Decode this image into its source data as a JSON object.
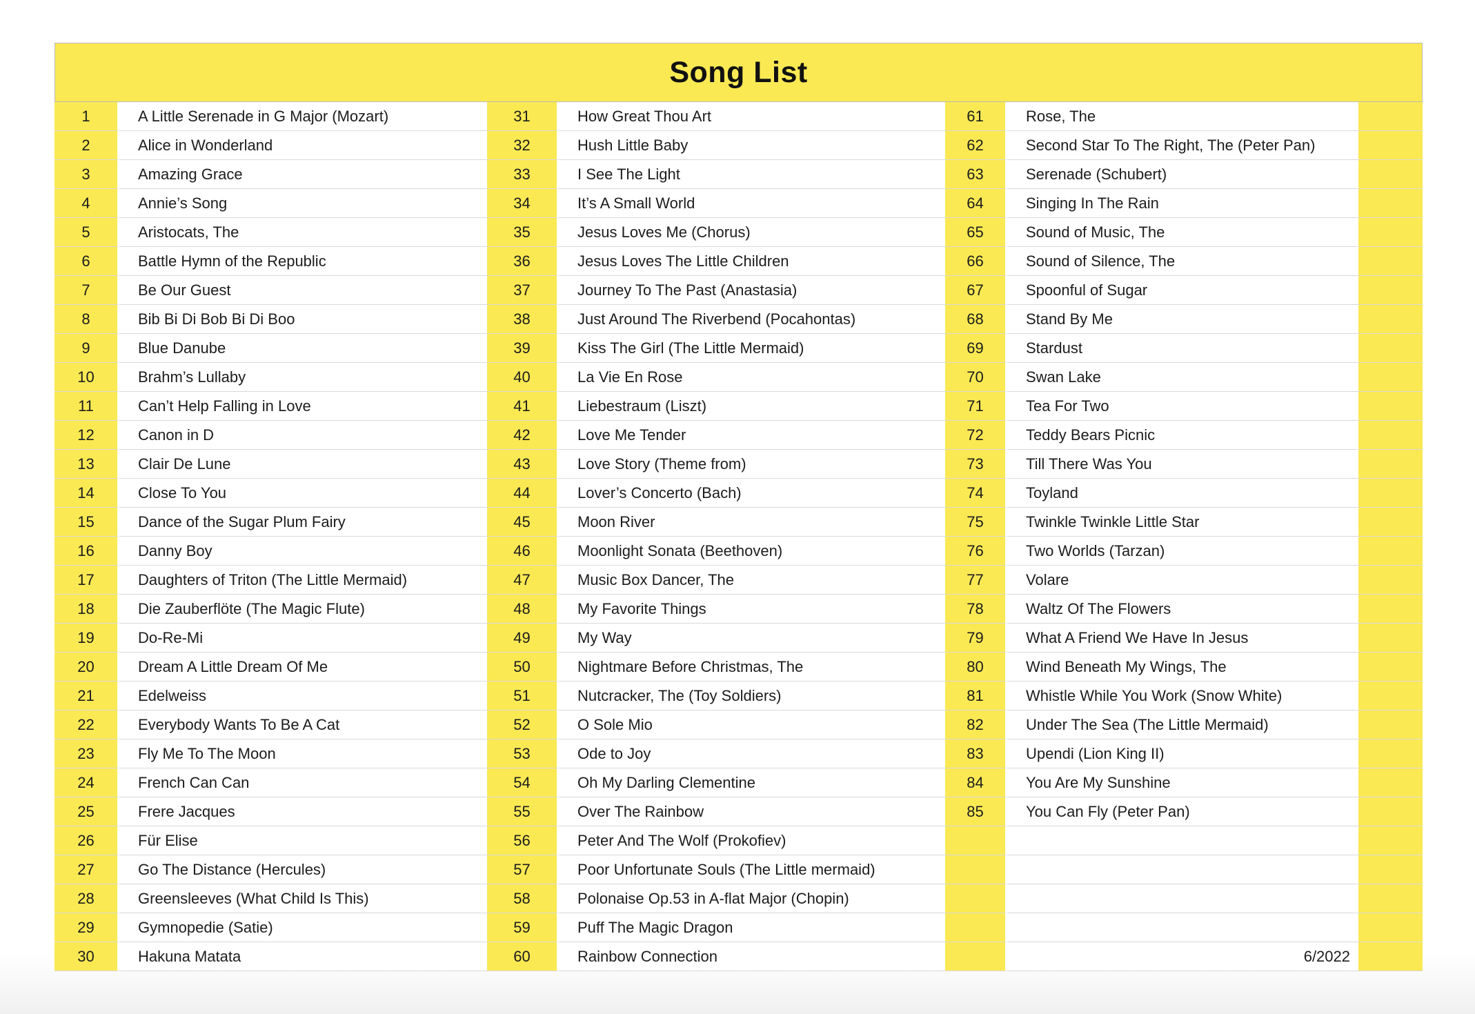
{
  "page": {
    "title": "Song List",
    "footer_date": "6/2022"
  },
  "colors": {
    "yellow": "#FAE953",
    "row": "#FFFFFF",
    "alt_row": "#F2F2F2",
    "divider": "#D9D9D9",
    "text": "#1C1C1C"
  },
  "table": {
    "rows_per_column": 30,
    "columns": [
      {
        "entries": [
          {
            "num": "1",
            "title": "A Little Serenade in G Major (Mozart)"
          },
          {
            "num": "2",
            "title": "Alice in Wonderland"
          },
          {
            "num": "3",
            "title": "Amazing Grace"
          },
          {
            "num": "4",
            "title": "Annie’s Song"
          },
          {
            "num": "5",
            "title": "Aristocats, The"
          },
          {
            "num": "6",
            "title": "Battle Hymn of the Republic"
          },
          {
            "num": "7",
            "title": "Be Our Guest"
          },
          {
            "num": "8",
            "title": "Bib Bi Di Bob Bi Di Boo"
          },
          {
            "num": "9",
            "title": "Blue Danube"
          },
          {
            "num": "10",
            "title": "Brahm’s Lullaby"
          },
          {
            "num": "11",
            "title": "Can’t Help Falling in Love"
          },
          {
            "num": "12",
            "title": "Canon in D"
          },
          {
            "num": "13",
            "title": "Clair De Lune"
          },
          {
            "num": "14",
            "title": "Close To You"
          },
          {
            "num": "15",
            "title": "Dance of the Sugar Plum Fairy"
          },
          {
            "num": "16",
            "title": "Danny Boy"
          },
          {
            "num": "17",
            "title": "Daughters of Triton (The Little Mermaid)"
          },
          {
            "num": "18",
            "title": "Die Zauberflöte (The Magic Flute)"
          },
          {
            "num": "19",
            "title": "Do-Re-Mi"
          },
          {
            "num": "20",
            "title": "Dream A Little Dream Of Me"
          },
          {
            "num": "21",
            "title": "Edelweiss"
          },
          {
            "num": "22",
            "title": "Everybody Wants To Be A Cat"
          },
          {
            "num": "23",
            "title": "Fly Me To The Moon"
          },
          {
            "num": "24",
            "title": "French Can Can"
          },
          {
            "num": "25",
            "title": "Frere Jacques"
          },
          {
            "num": "26",
            "title": "Für Elise"
          },
          {
            "num": "27",
            "title": "Go The Distance (Hercules)"
          },
          {
            "num": "28",
            "title": "Greensleeves (What Child Is This)"
          },
          {
            "num": "29",
            "title": "Gymnopedie (Satie)"
          },
          {
            "num": "30",
            "title": "Hakuna Matata"
          }
        ]
      },
      {
        "entries": [
          {
            "num": "31",
            "title": "How Great Thou Art"
          },
          {
            "num": "32",
            "title": "Hush Little Baby"
          },
          {
            "num": "33",
            "title": "I See The Light"
          },
          {
            "num": "34",
            "title": "It’s A Small World"
          },
          {
            "num": "35",
            "title": "Jesus Loves Me (Chorus)"
          },
          {
            "num": "36",
            "title": "Jesus Loves The Little Children"
          },
          {
            "num": "37",
            "title": "Journey To The Past (Anastasia)"
          },
          {
            "num": "38",
            "title": "Just Around The Riverbend (Pocahontas)"
          },
          {
            "num": "39",
            "title": "Kiss The Girl (The Little Mermaid)"
          },
          {
            "num": "40",
            "title": "La Vie En Rose"
          },
          {
            "num": "41",
            "title": "Liebestraum (Liszt)"
          },
          {
            "num": "42",
            "title": "Love Me Tender"
          },
          {
            "num": "43",
            "title": "Love Story (Theme from)"
          },
          {
            "num": "44",
            "title": "Lover’s Concerto (Bach)"
          },
          {
            "num": "45",
            "title": "Moon River"
          },
          {
            "num": "46",
            "title": "Moonlight Sonata (Beethoven)"
          },
          {
            "num": "47",
            "title": "Music Box Dancer, The"
          },
          {
            "num": "48",
            "title": "My Favorite Things"
          },
          {
            "num": "49",
            "title": "My Way"
          },
          {
            "num": "50",
            "title": "Nightmare Before Christmas, The"
          },
          {
            "num": "51",
            "title": "Nutcracker, The (Toy Soldiers)"
          },
          {
            "num": "52",
            "title": "O Sole Mio"
          },
          {
            "num": "53",
            "title": "Ode to Joy"
          },
          {
            "num": "54",
            "title": "Oh My Darling Clementine"
          },
          {
            "num": "55",
            "title": "Over The Rainbow"
          },
          {
            "num": "56",
            "title": "Peter And The Wolf (Prokofiev)"
          },
          {
            "num": "57",
            "title": "Poor Unfortunate Souls (The Little mermaid)"
          },
          {
            "num": "58",
            "title": "Polonaise Op.53 in A-flat Major (Chopin)"
          },
          {
            "num": "59",
            "title": "Puff The Magic Dragon"
          },
          {
            "num": "60",
            "title": "Rainbow Connection"
          }
        ]
      },
      {
        "entries": [
          {
            "num": "61",
            "title": "Rose, The"
          },
          {
            "num": "62",
            "title": "Second Star To The Right, The (Peter Pan)"
          },
          {
            "num": "63",
            "title": "Serenade (Schubert)"
          },
          {
            "num": "64",
            "title": "Singing In The Rain"
          },
          {
            "num": "65",
            "title": "Sound of Music, The"
          },
          {
            "num": "66",
            "title": "Sound of Silence, The"
          },
          {
            "num": "67",
            "title": "Spoonful of Sugar"
          },
          {
            "num": "68",
            "title": "Stand By Me"
          },
          {
            "num": "69",
            "title": "Stardust"
          },
          {
            "num": "70",
            "title": "Swan Lake"
          },
          {
            "num": "71",
            "title": "Tea For Two"
          },
          {
            "num": "72",
            "title": "Teddy Bears Picnic"
          },
          {
            "num": "73",
            "title": "Till There Was You"
          },
          {
            "num": "74",
            "title": "Toyland"
          },
          {
            "num": "75",
            "title": "Twinkle Twinkle Little Star"
          },
          {
            "num": "76",
            "title": "Two Worlds (Tarzan)"
          },
          {
            "num": "77",
            "title": "Volare"
          },
          {
            "num": "78",
            "title": "Waltz Of The Flowers"
          },
          {
            "num": "79",
            "title": "What A Friend We Have In Jesus"
          },
          {
            "num": "80",
            "title": "Wind Beneath My Wings, The"
          },
          {
            "num": "81",
            "title": "Whistle While You Work (Snow White)"
          },
          {
            "num": "82",
            "title": "Under The Sea (The Little Mermaid)"
          },
          {
            "num": "83",
            "title": "Upendi (Lion King II)"
          },
          {
            "num": "84",
            "title": "You Are My Sunshine"
          },
          {
            "num": "85",
            "title": "You Can Fly (Peter Pan)"
          },
          {
            "num": "",
            "title": ""
          },
          {
            "num": "",
            "title": ""
          },
          {
            "num": "",
            "title": ""
          },
          {
            "num": "",
            "title": ""
          },
          {
            "num": "",
            "title": ""
          }
        ]
      }
    ]
  }
}
